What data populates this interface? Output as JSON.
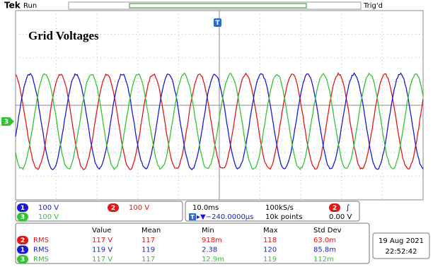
{
  "header": {
    "brand": "Tek",
    "status": "Run",
    "trigger_status": "Trig'd"
  },
  "title": "Grid Voltages",
  "markers": {
    "trigger": "T",
    "ground": "3"
  },
  "channels": [
    {
      "id": "1",
      "scale": "100 V",
      "color": "#1a1ad6"
    },
    {
      "id": "2",
      "scale": "100 V",
      "color": "#e01818"
    },
    {
      "id": "3",
      "scale": "100 V",
      "color": "#33c433"
    }
  ],
  "timebase": {
    "scale": "10.0ms",
    "rate": "100kS/s",
    "trigger_source": "2",
    "trigger_slope": "∫",
    "position": "▸▼−240.0000µs",
    "points": "10k points",
    "level": "0.00 V"
  },
  "measurements": {
    "header": [
      "Value",
      "Mean",
      "Min",
      "Max",
      "Std Dev"
    ],
    "rows": [
      {
        "channel": "2",
        "type": "RMS",
        "cells": [
          "117 V",
          "117",
          "918m",
          "118",
          "63.0m"
        ]
      },
      {
        "channel": "1",
        "type": "RMS",
        "cells": [
          "119 V",
          "119",
          "2.38",
          "120",
          "85.8m"
        ]
      },
      {
        "channel": "3",
        "type": "RMS",
        "cells": [
          "117 V",
          "117",
          "12.9m",
          "119",
          "112m"
        ]
      }
    ]
  },
  "date": "19 Aug 2021",
  "time": "22:52:42"
}
